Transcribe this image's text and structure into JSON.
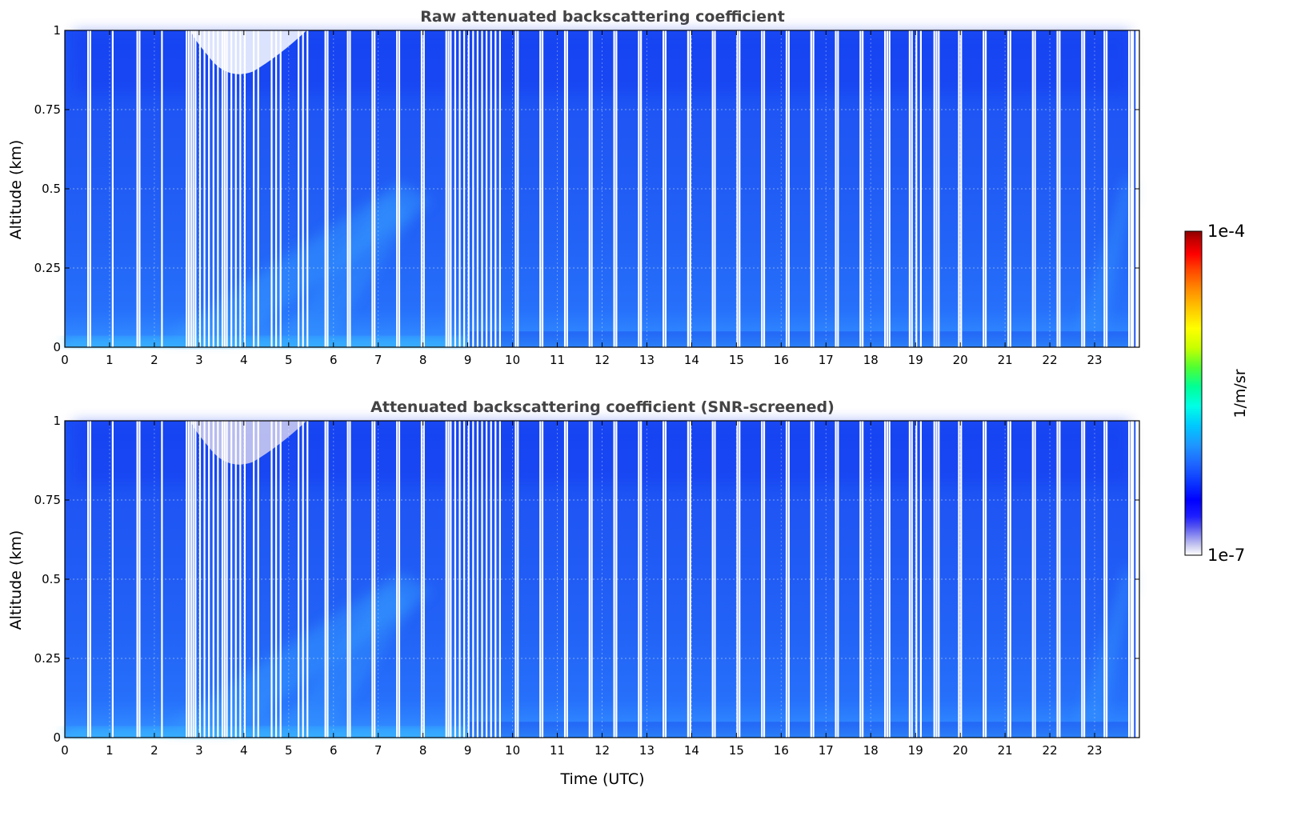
{
  "chart_data": [
    {
      "type": "heatmap",
      "title": "Raw attenuated backscattering coefficient",
      "xlabel": "",
      "ylabel": "Altitude (km)",
      "xlim": [
        0,
        24
      ],
      "ylim": [
        0,
        1
      ],
      "xticks": [
        "0",
        "1",
        "2",
        "3",
        "4",
        "5",
        "6",
        "7",
        "8",
        "9",
        "10",
        "11",
        "12",
        "13",
        "14",
        "15",
        "16",
        "17",
        "18",
        "19",
        "20",
        "21",
        "22",
        "23"
      ],
      "yticks": [
        "0",
        "0.25",
        "0.5",
        "0.75",
        "1"
      ],
      "grid": true,
      "data_gap_hours": [
        0.5,
        0.55,
        1.05,
        1.6,
        1.65,
        2.15,
        2.7,
        2.75,
        2.8,
        2.85,
        2.9,
        3.0,
        3.1,
        3.2,
        3.3,
        3.4,
        3.5,
        3.55,
        3.6,
        3.7,
        3.8,
        3.9,
        4.0,
        4.2,
        4.3,
        4.6,
        4.7,
        4.8,
        5.2,
        5.3,
        5.4,
        5.8,
        5.85,
        6.3,
        6.35,
        6.85,
        6.9,
        7.4,
        7.45,
        7.95,
        8.0,
        8.5,
        8.55,
        8.6,
        8.7,
        8.8,
        8.9,
        9.0,
        9.1,
        9.2,
        9.3,
        9.4,
        9.5,
        9.6,
        9.7,
        10.05,
        10.1,
        10.6,
        10.65,
        11.15,
        11.2,
        11.7,
        11.75,
        12.25,
        12.3,
        12.8,
        12.85,
        13.35,
        13.4,
        13.9,
        13.95,
        14.45,
        14.5,
        15.0,
        15.05,
        15.55,
        15.6,
        16.1,
        16.15,
        16.65,
        16.7,
        17.2,
        17.25,
        17.75,
        17.8,
        18.3,
        18.35,
        18.4,
        18.85,
        18.9,
        19.0,
        19.1,
        19.4,
        19.45,
        19.5,
        19.95,
        20.0,
        20.5,
        20.55,
        21.05,
        21.1,
        21.6,
        21.65,
        22.15,
        22.2,
        22.7,
        22.75,
        23.2,
        23.25,
        23.75
      ],
      "white_region": {
        "x": [
          2.8,
          5.4
        ],
        "y_min_km": 0.87,
        "y_max_km": 1.0
      }
    },
    {
      "type": "heatmap",
      "title": "Attenuated backscattering coefficient (SNR-screened)",
      "xlabel": "Time (UTC)",
      "ylabel": "Altitude (km)",
      "xlim": [
        0,
        24
      ],
      "ylim": [
        0,
        1
      ],
      "xticks": [
        "0",
        "1",
        "2",
        "3",
        "4",
        "5",
        "6",
        "7",
        "8",
        "9",
        "10",
        "11",
        "12",
        "13",
        "14",
        "15",
        "16",
        "17",
        "18",
        "19",
        "20",
        "21",
        "22",
        "23"
      ],
      "yticks": [
        "0",
        "0.25",
        "0.5",
        "0.75",
        "1"
      ],
      "grid": true,
      "white_region": {
        "x": [
          2.8,
          5.4
        ],
        "y_min_km": 0.87,
        "y_max_km": 1.0
      }
    }
  ],
  "colorbar": {
    "label": "1/m/sr",
    "min_label": "1e-7",
    "max_label": "1e-4",
    "scale": "log",
    "range": [
      1e-07,
      0.0001
    ],
    "colormap": [
      "#ffffff",
      "#c8c8f0",
      "#8c8cf0",
      "#5050f0",
      "#1e1eff",
      "#0000ff",
      "#0a32ff",
      "#1e64ff",
      "#1e96ff",
      "#00c8ff",
      "#00ffe6",
      "#00ff96",
      "#50ff32",
      "#c8ff00",
      "#ffff00",
      "#ffc800",
      "#ff8c00",
      "#ff4600",
      "#ff0000",
      "#c80000",
      "#8b0000"
    ]
  },
  "colors": {
    "base_blue": "#1f56f4",
    "light_blue": "#39a0ff",
    "dark_blue": "#1030f0",
    "gap": "#ffffff"
  }
}
